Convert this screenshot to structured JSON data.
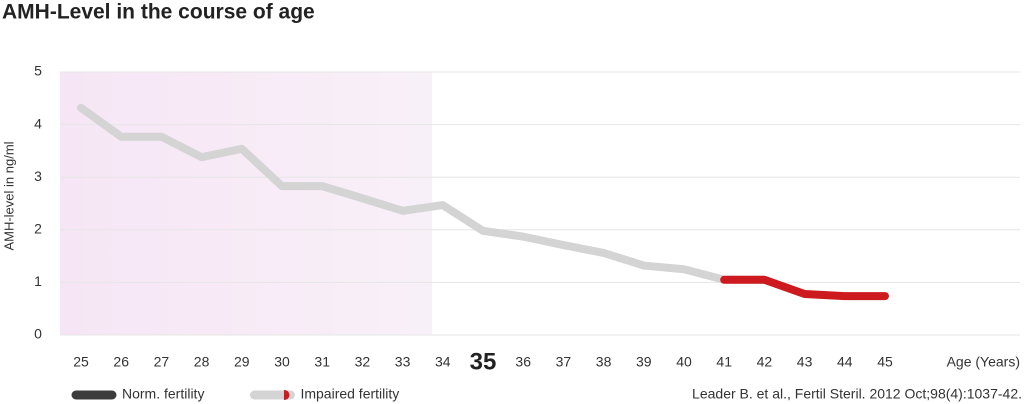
{
  "chart_data": {
    "type": "line",
    "title": "AMH-Level in the course of age",
    "ylabel": "AMH-level in ng/ml",
    "xlabel": "Age (Years)",
    "source": "Leader B. et al., Fertil Steril. 2012 Oct;98(4):1037-42.",
    "categories": [
      "25",
      "26",
      "27",
      "28",
      "29",
      "30",
      "31",
      "32",
      "33",
      "34",
      "35",
      "36",
      "37",
      "38",
      "39",
      "40",
      "41",
      "42",
      "43",
      "44",
      "45"
    ],
    "emphasized_category_index": 10,
    "series": [
      {
        "color": "#d4d4d4",
        "values": [
          4.32,
          3.77,
          3.77,
          3.38,
          3.54,
          2.83,
          2.83,
          2.6,
          2.36,
          2.47,
          1.98,
          1.87,
          1.71,
          1.56,
          1.32,
          1.25,
          1.05,
          1.05,
          null,
          null,
          null
        ]
      },
      {
        "color": "#cc1a1f",
        "values": [
          null,
          null,
          null,
          null,
          null,
          null,
          null,
          null,
          null,
          null,
          null,
          null,
          null,
          null,
          null,
          null,
          1.05,
          1.05,
          0.78,
          0.74,
          0.74
        ]
      }
    ],
    "ylim": [
      0,
      5
    ],
    "yticks": [
      0,
      1,
      2,
      3,
      4,
      5
    ],
    "grid": true,
    "legend": [
      {
        "label": "Norm. fertility",
        "color": "#3c3c3c"
      },
      {
        "label": "Impaired fertility",
        "color": "#d4d4d4",
        "accent": "#cc1a1f"
      }
    ]
  }
}
